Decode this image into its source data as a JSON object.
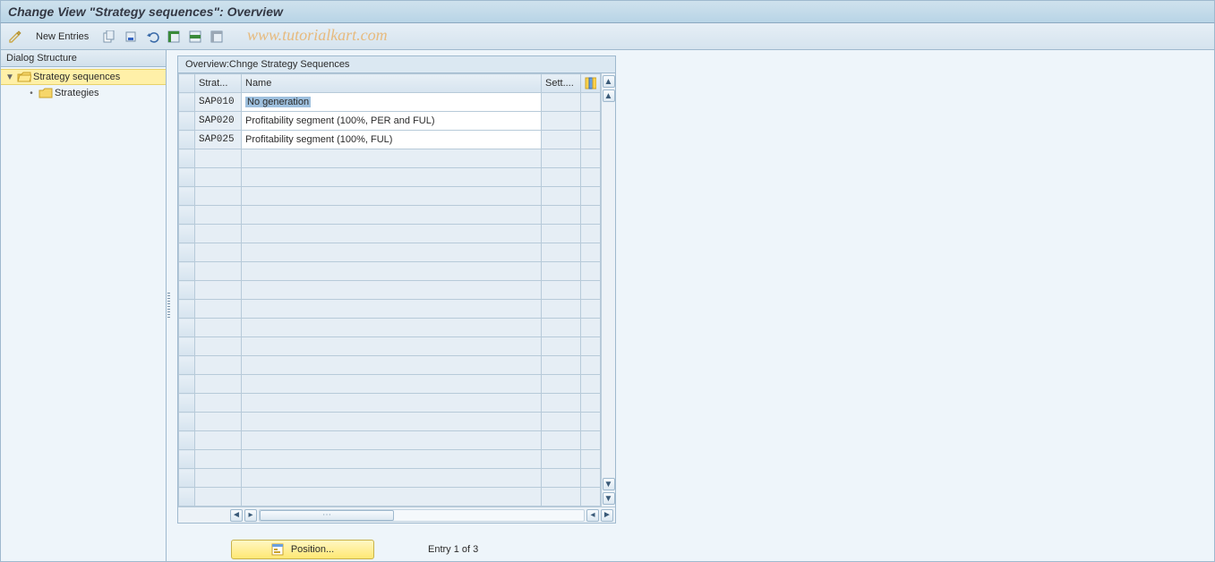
{
  "colors": {
    "header_bg_top": "#cfe2ed",
    "header_bg_bottom": "#b8d4e6",
    "border": "#9fb9ce",
    "panel_bg": "#eef5fa",
    "grid_header_top": "#e7eff6",
    "grid_header_bottom": "#d6e4ef",
    "cell_border": "#b7cad9",
    "readonly_cell": "#e6eef5",
    "selection": "#9ec0de",
    "tree_selected": "#fff0a8",
    "button_yellow_top": "#fff7c3",
    "button_yellow_bottom": "#ffe873",
    "watermark": "#e8b26a"
  },
  "title": "Change View \"Strategy sequences\": Overview",
  "watermark": "www.tutorialkart.com",
  "toolbar": {
    "new_entries_label": "New Entries",
    "icons": [
      "toggle",
      "copy",
      "delete",
      "undo",
      "select-all",
      "select-block",
      "deselect-all"
    ]
  },
  "sidebar": {
    "header": "Dialog Structure",
    "tree": {
      "root": {
        "label": "Strategy sequences",
        "expanded": true,
        "selected": true
      },
      "children": [
        {
          "label": "Strategies",
          "selected": false
        }
      ]
    }
  },
  "grid": {
    "title": "Overview:Chnge Strategy Sequences",
    "columns": {
      "strat": "Strat...",
      "name": "Name",
      "sett": "Sett...."
    },
    "rows": [
      {
        "strat": "SAP010",
        "name": "No generation",
        "sett": "",
        "selected": true
      },
      {
        "strat": "SAP020",
        "name": "Profitability segment (100%, PER and FUL)",
        "sett": "",
        "selected": false
      },
      {
        "strat": "SAP025",
        "name": "Profitability segment (100%, FUL)",
        "sett": "",
        "selected": false
      }
    ],
    "empty_row_count": 19
  },
  "footer": {
    "position_label": "Position...",
    "entry_text": "Entry 1 of 3"
  }
}
